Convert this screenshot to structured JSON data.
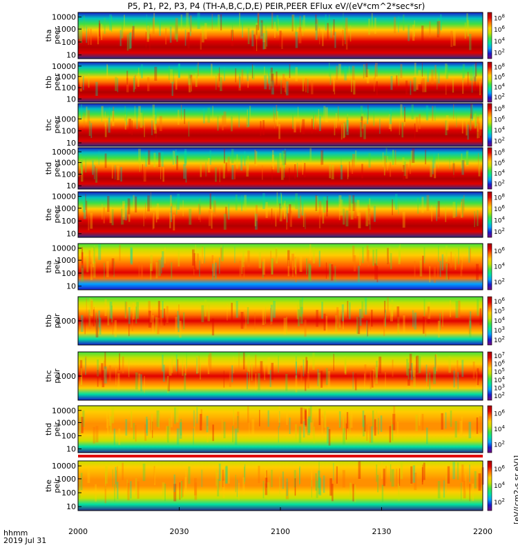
{
  "title": "P5, P1, P2, P3, P4 (TH-A,B,C,D,E) PEIR,PEER EFlux eV/(eV*cm^2*sec*sr)",
  "colorbar_unit": "[eV/(cm2-s sr eV)]",
  "time_axis": {
    "label_format": "hhmm",
    "date": "2019 Jul 31",
    "ticks": [
      "2000",
      "2030",
      "2100",
      "2130",
      "2200"
    ]
  },
  "colors": {
    "scale": [
      "#7a0a7a",
      "#1a1acc",
      "#00a0ff",
      "#00e0a0",
      "#40e040",
      "#c8e000",
      "#ffcc00",
      "#ff7000",
      "#e00000",
      "#a00000"
    ]
  },
  "chart_data": [
    {
      "type": "heatmap",
      "panel": "tha-peer",
      "ylabel": [
        "tha",
        "peer"
      ],
      "yticks": [
        "10",
        "100",
        "1000",
        "10000"
      ],
      "cbar_ticks": [
        "10^2",
        "10^4",
        "10^6",
        "10^8"
      ]
    },
    {
      "type": "heatmap",
      "panel": "thb-peer",
      "ylabel": [
        "thb",
        "peer"
      ],
      "yticks": [
        "10",
        "100",
        "1000",
        "10000"
      ],
      "cbar_ticks": [
        "10^2",
        "10^4",
        "10^6",
        "10^8"
      ]
    },
    {
      "type": "heatmap",
      "panel": "thc-peer",
      "ylabel": [
        "thc",
        "peer"
      ],
      "yticks": [
        "10",
        "100",
        "1000"
      ],
      "cbar_ticks": [
        "10^2",
        "10^4",
        "10^6",
        "10^8"
      ]
    },
    {
      "type": "heatmap",
      "panel": "thd-peer",
      "ylabel": [
        "thd",
        "peer"
      ],
      "yticks": [
        "10",
        "100",
        "1000",
        "10000"
      ],
      "cbar_ticks": [
        "10^2",
        "10^4",
        "10^6",
        "10^8"
      ]
    },
    {
      "type": "heatmap",
      "panel": "the-peer",
      "ylabel": [
        "the",
        "peer"
      ],
      "yticks": [
        "10",
        "100",
        "1000",
        "10000"
      ],
      "cbar_ticks": [
        "10^2",
        "10^4",
        "10^6",
        "10^8"
      ]
    },
    {
      "type": "heatmap",
      "panel": "tha-peir",
      "ylabel": [
        "tha",
        "peir"
      ],
      "yticks": [
        "10",
        "100",
        "1000",
        "10000"
      ],
      "cbar_ticks": [
        "10^2",
        "10^4",
        "10^6"
      ]
    },
    {
      "type": "heatmap",
      "panel": "thb-peir",
      "ylabel": [
        "thb",
        "peir"
      ],
      "yticks": [
        "1000"
      ],
      "cbar_ticks": [
        "10^2",
        "10^3",
        "10^4",
        "10^5",
        "10^6"
      ]
    },
    {
      "type": "heatmap",
      "panel": "thc-peir",
      "ylabel": [
        "thc",
        "peir"
      ],
      "yticks": [
        "1000"
      ],
      "cbar_ticks": [
        "10^2",
        "10^3",
        "10^4",
        "10^5",
        "10^6",
        "10^7"
      ]
    },
    {
      "type": "heatmap",
      "panel": "thd-peir",
      "ylabel": [
        "thd",
        "peir"
      ],
      "yticks": [
        "10",
        "100",
        "1000",
        "10000"
      ],
      "cbar_ticks": [
        "10^2",
        "10^4",
        "10^6"
      ]
    },
    {
      "type": "heatmap",
      "panel": "the-peir",
      "ylabel": [
        "the",
        "peir"
      ],
      "yticks": [
        "10",
        "100",
        "1000",
        "10000"
      ],
      "cbar_ticks": [
        "10^2",
        "10^4",
        "10^6"
      ]
    }
  ]
}
